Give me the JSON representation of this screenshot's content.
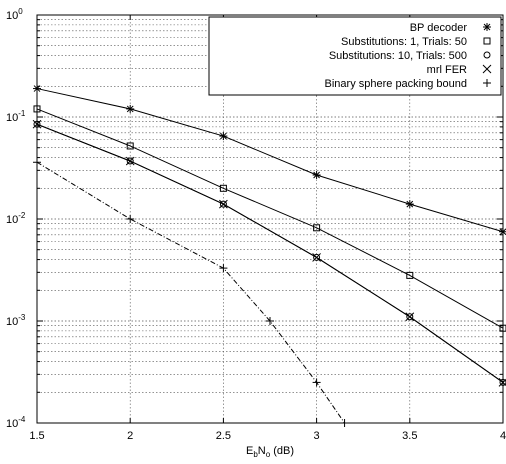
{
  "chart_data": {
    "type": "line",
    "xlabel": {
      "main": "E",
      "sub1": "b",
      "mid": "N",
      "sub2": "o",
      "unit": " (dB)"
    },
    "ylabel": "",
    "xlim": [
      1.5,
      4
    ],
    "ylim": [
      0.0001,
      1
    ],
    "yscale": "log",
    "grid": true,
    "legend_position": "top-right",
    "x_ticks": [
      {
        "value": 1.5,
        "label": "1.5"
      },
      {
        "value": 2,
        "label": "2"
      },
      {
        "value": 2.5,
        "label": "2.5"
      },
      {
        "value": 3,
        "label": "3"
      },
      {
        "value": 3.5,
        "label": "3.5"
      },
      {
        "value": 4,
        "label": "4"
      }
    ],
    "y_ticks": [
      {
        "value": 0.0001,
        "base": "10",
        "exp": "-4"
      },
      {
        "value": 0.001,
        "base": "10",
        "exp": "-3"
      },
      {
        "value": 0.01,
        "base": "10",
        "exp": "-2"
      },
      {
        "value": 0.1,
        "base": "10",
        "exp": "-1"
      },
      {
        "value": 1,
        "base": "10",
        "exp": "0"
      }
    ],
    "series": [
      {
        "name": "BP decoder",
        "marker": "asterisk",
        "linestyle": "solid",
        "x": [
          1.5,
          2,
          2.5,
          3,
          3.5,
          4
        ],
        "y": [
          0.19,
          0.12,
          0.065,
          0.027,
          0.014,
          0.0075
        ]
      },
      {
        "name": "Substitutions: 1, Trials: 50",
        "marker": "square",
        "linestyle": "solid",
        "x": [
          1.5,
          2,
          2.5,
          3,
          3.5,
          4
        ],
        "y": [
          0.12,
          0.052,
          0.02,
          0.0082,
          0.0028,
          0.00085
        ]
      },
      {
        "name": "Substitutions: 10, Trials: 500",
        "marker": "circle",
        "linestyle": "solid",
        "x": [
          1.5,
          2,
          2.5,
          3,
          3.5,
          4
        ],
        "y": [
          0.085,
          0.037,
          0.014,
          0.0042,
          0.0011,
          0.00025
        ]
      },
      {
        "name": "mrl FER",
        "marker": "x",
        "linestyle": "solid",
        "x": [
          1.5,
          2,
          2.5,
          3,
          3.5,
          4
        ],
        "y": [
          0.085,
          0.037,
          0.014,
          0.0042,
          0.0011,
          0.00025
        ]
      },
      {
        "name": "Binary sphere packing bound",
        "marker": "plus",
        "linestyle": "dashdot",
        "x": [
          1.5,
          2,
          2.5,
          2.75,
          3,
          3.15
        ],
        "y": [
          0.036,
          0.01,
          0.0033,
          0.001,
          0.00025,
          0.0001
        ]
      }
    ]
  }
}
